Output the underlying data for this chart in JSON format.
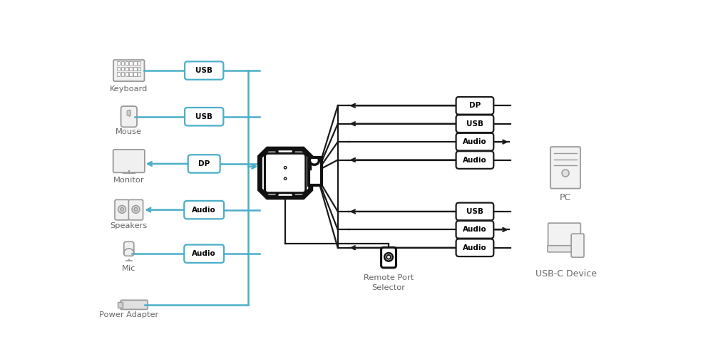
{
  "bg_color": "#ffffff",
  "device_color": "#999999",
  "line_color_blue": "#4aaec9",
  "line_color_black": "#1a1a1a",
  "text_color": "#666666",
  "kvm_color": "#111111",
  "label_border_blue": "#4aaec9",
  "label_border_black": "#111111",
  "labels_left": [
    "USB",
    "USB",
    "DP",
    "Audio",
    "Audio"
  ],
  "labels_right_pc": [
    "DP",
    "USB",
    "Audio",
    "Audio"
  ],
  "labels_right_usbc": [
    "USB",
    "Audio",
    "Audio"
  ],
  "pc_arrows": [
    "left",
    "left",
    "right",
    "left"
  ],
  "usbc_arrows": [
    "left",
    "right",
    "left"
  ],
  "devices_left": [
    "Keyboard",
    "Mouse",
    "Monitor",
    "Speakers",
    "Mic",
    "Power Adapter"
  ],
  "devices_right": [
    "PC",
    "USB-C Device"
  ],
  "remote_label": "Remote Port\nSelector"
}
